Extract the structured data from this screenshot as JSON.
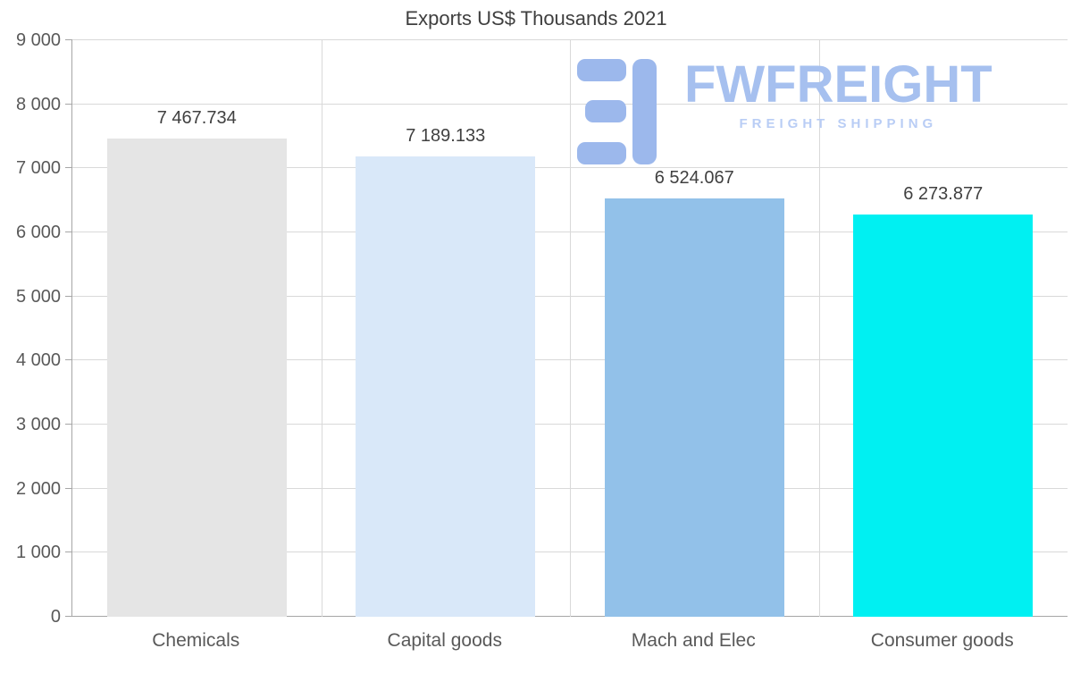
{
  "chart_data": {
    "type": "bar",
    "title": "Exports US$ Thousands 2021",
    "categories": [
      "Chemicals",
      "Capital goods",
      "Mach and Elec",
      "Consumer goods"
    ],
    "values": [
      7467.734,
      7189.133,
      6524.067,
      6273.877
    ],
    "value_labels": [
      "7 467.734",
      "7 189.133",
      "6 524.067",
      "6 273.877"
    ],
    "bar_colors": [
      "#e5e5e5",
      "#d9e8f9",
      "#92c1e9",
      "#00f0f2"
    ],
    "xlabel": "",
    "ylabel": "",
    "ylim": [
      0,
      9000
    ],
    "ytick_labels": [
      "0",
      "1 000",
      "2 000",
      "3 000",
      "4 000",
      "5 000",
      "6 000",
      "7 000",
      "8 000",
      "9 000"
    ],
    "grid": true,
    "legend": "none"
  },
  "watermark": {
    "brand": "FWFREIGHT",
    "tagline": "FREIGHT SHIPPING",
    "brand_color": "#a6c0ef",
    "tagline_color": "#b9cdf5",
    "logo_icon": "fwfreight-logo-icon"
  }
}
